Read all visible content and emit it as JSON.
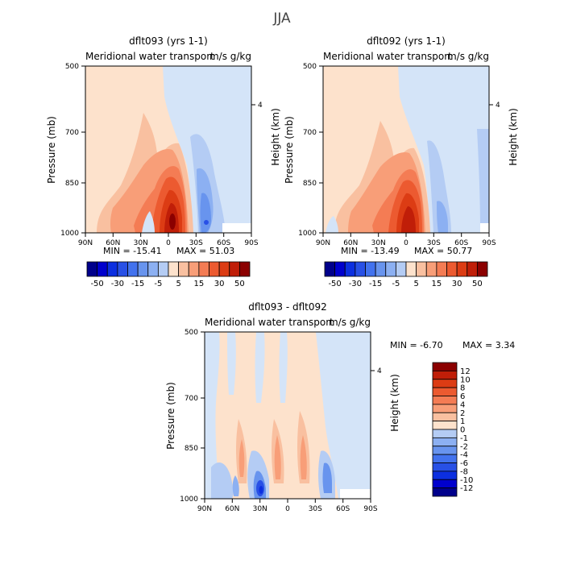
{
  "figure_title": "JJA",
  "colors": {
    "diverging_scale": [
      "#00008b",
      "#0000cd",
      "#0c2fe0",
      "#2850e6",
      "#4272ee",
      "#6894ee",
      "#8cb0f2",
      "#b4ccf4",
      "#d4e4f8",
      "#fde2cc",
      "#f9c0a0",
      "#f89e78",
      "#f47c54",
      "#ec5a30",
      "#dc3c14",
      "#c01e08",
      "#8b0000"
    ]
  },
  "chart_data": [
    {
      "type": "heatmap",
      "name": "dflt093",
      "title": "dflt093 (yrs 1-1)",
      "subtitle": "Meridional water transport",
      "unit": "m/s g/kg",
      "xlabel": "",
      "ylabel": "Pressure (mb)",
      "ylabel_right": "Height (km)",
      "x_ticks": [
        "90N",
        "60N",
        "30N",
        "0",
        "30S",
        "60S",
        "90S"
      ],
      "y_ticks": [
        "500",
        "700",
        "850",
        "1000"
      ],
      "y_right_ticks": [
        "4"
      ],
      "ylim": [
        1000,
        500
      ],
      "min_label": "MIN = -15.41",
      "max_label": "MAX = 51.03",
      "min": -15.41,
      "max": 51.03,
      "color_levels": [
        -50,
        -40,
        -30,
        -20,
        -15,
        -10,
        -5,
        0,
        5,
        10,
        15,
        20,
        30,
        40,
        50
      ],
      "colorbar_labels": [
        "-50",
        "-30",
        "-15",
        "-5",
        "5",
        "15",
        "30",
        "50"
      ]
    },
    {
      "type": "heatmap",
      "name": "dflt092",
      "title": "dflt092 (yrs 1-1)",
      "subtitle": "Meridional water transport",
      "unit": "m/s g/kg",
      "xlabel": "",
      "ylabel": "Pressure (mb)",
      "ylabel_right": "Height (km)",
      "x_ticks": [
        "90N",
        "60N",
        "30N",
        "0",
        "30S",
        "60S",
        "90S"
      ],
      "y_ticks": [
        "500",
        "700",
        "850",
        "1000"
      ],
      "y_right_ticks": [
        "4"
      ],
      "ylim": [
        1000,
        500
      ],
      "min_label": "MIN = -13.49",
      "max_label": "MAX = 50.77",
      "min": -13.49,
      "max": 50.77,
      "color_levels": [
        -50,
        -40,
        -30,
        -20,
        -15,
        -10,
        -5,
        0,
        5,
        10,
        15,
        20,
        30,
        40,
        50
      ],
      "colorbar_labels": [
        "-50",
        "-30",
        "-15",
        "-5",
        "5",
        "15",
        "30",
        "50"
      ]
    },
    {
      "type": "heatmap",
      "name": "difference",
      "title": "dflt093 - dflt092",
      "subtitle": "Meridional water transport",
      "unit": "m/s g/kg",
      "xlabel": "",
      "ylabel": "Pressure (mb)",
      "ylabel_right": "Height (km)",
      "x_ticks": [
        "90N",
        "60N",
        "30N",
        "0",
        "30S",
        "60S",
        "90S"
      ],
      "y_ticks": [
        "500",
        "700",
        "850",
        "1000"
      ],
      "y_right_ticks": [
        "4"
      ],
      "ylim": [
        1000,
        500
      ],
      "min_label": "MIN = -6.70",
      "max_label": "MAX = 3.34",
      "min": -6.7,
      "max": 3.34,
      "color_levels": [
        -12,
        -10,
        -8,
        -6,
        -4,
        -2,
        -1,
        0,
        1,
        2,
        4,
        6,
        8,
        10,
        12
      ],
      "colorbar_labels": [
        "12",
        "10",
        "8",
        "6",
        "4",
        "2",
        "1",
        "0",
        "-1",
        "-2",
        "-4",
        "-6",
        "-8",
        "-10",
        "-12"
      ]
    }
  ]
}
